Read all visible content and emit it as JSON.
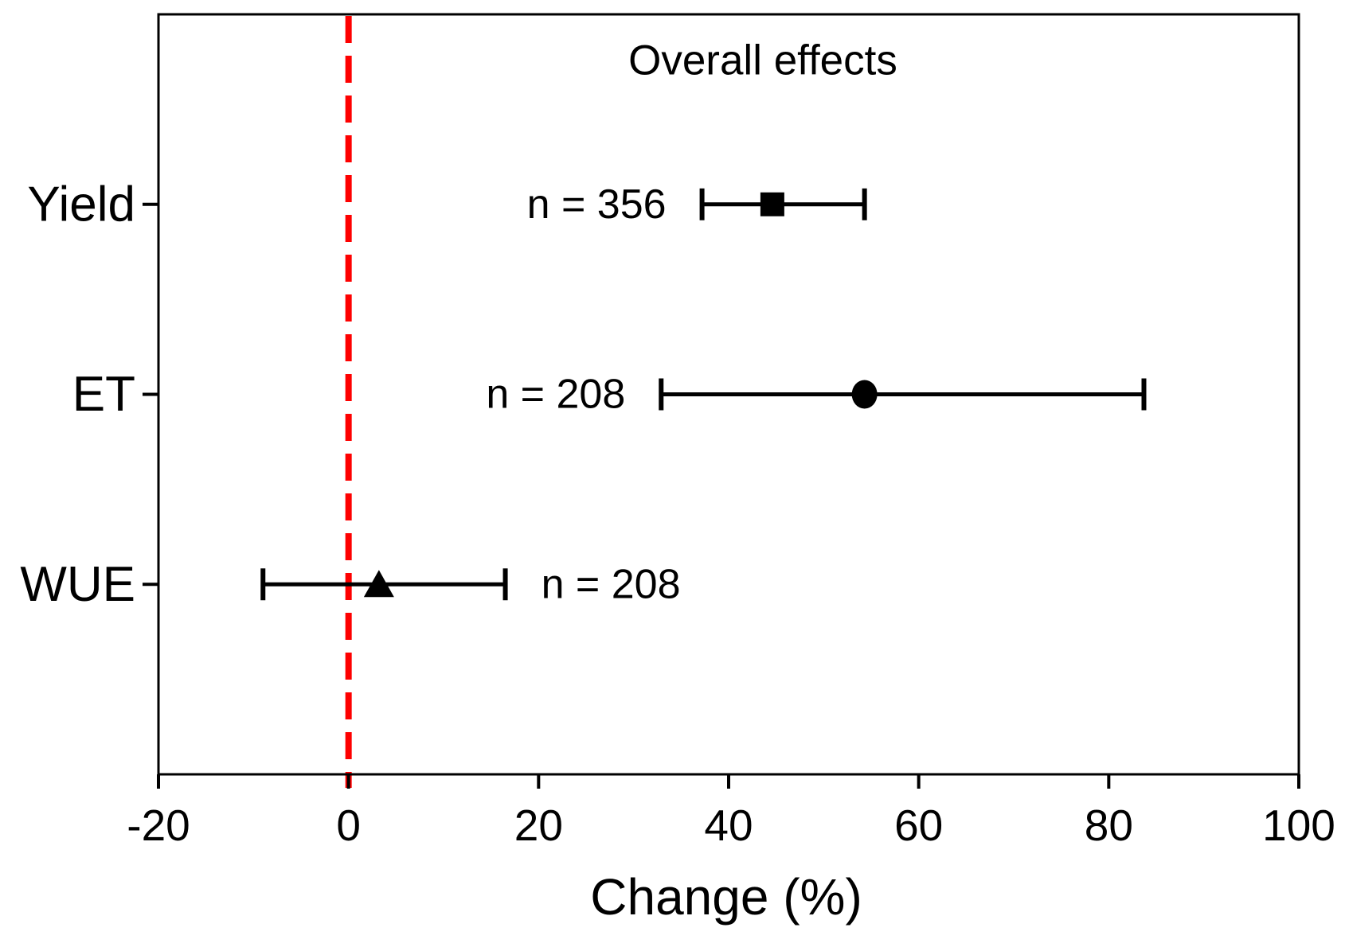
{
  "chart_data": {
    "type": "scatter",
    "subtype": "forest-plot-with-error-bars",
    "title": "Overall effects",
    "xlabel": "Change (%)",
    "xlim": [
      -20,
      100
    ],
    "x_ticks": [
      -20,
      0,
      20,
      40,
      60,
      80,
      100
    ],
    "grid": false,
    "reference_line_x": 0,
    "reference_line_style": "dashed",
    "colors": {
      "reference_line": "#fe0000",
      "data": "#000000",
      "background": "#ffffff"
    },
    "rows": [
      {
        "label": "Yield",
        "n": 356,
        "n_label": "n = 356",
        "n_label_side": "left",
        "marker": "square",
        "mean": 44.6,
        "ci_low": 37.2,
        "ci_high": 54.3
      },
      {
        "label": "ET",
        "n": 208,
        "n_label": "n = 208",
        "n_label_side": "left",
        "marker": "circle",
        "mean": 54.3,
        "ci_low": 32.9,
        "ci_high": 83.7
      },
      {
        "label": "WUE",
        "n": 208,
        "n_label": "n = 208",
        "n_label_side": "right",
        "marker": "triangle",
        "mean": 3.2,
        "ci_low": -9.0,
        "ci_high": 16.5
      }
    ]
  }
}
